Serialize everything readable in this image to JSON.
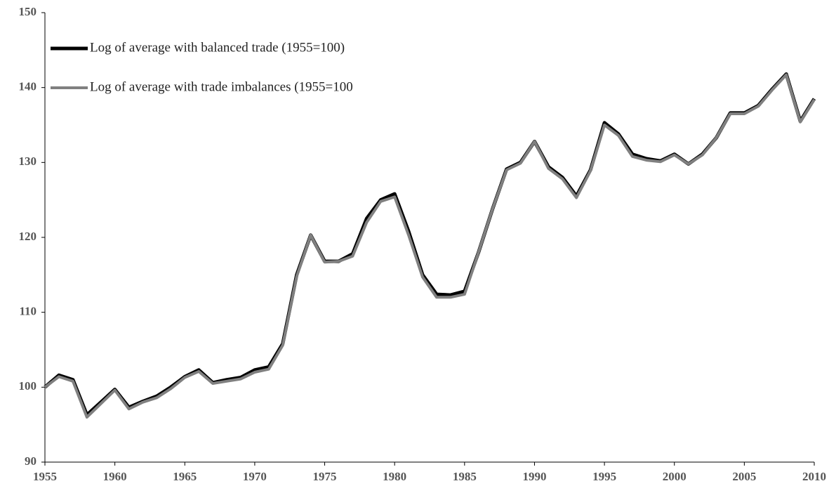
{
  "chart_data": {
    "type": "line",
    "x": [
      1955,
      1956,
      1957,
      1958,
      1959,
      1960,
      1961,
      1962,
      1963,
      1964,
      1965,
      1966,
      1967,
      1968,
      1969,
      1970,
      1971,
      1972,
      1973,
      1974,
      1975,
      1976,
      1977,
      1978,
      1979,
      1980,
      1981,
      1982,
      1983,
      1984,
      1985,
      1986,
      1987,
      1988,
      1989,
      1990,
      1991,
      1992,
      1993,
      1994,
      1995,
      1996,
      1997,
      1998,
      1999,
      2000,
      2001,
      2002,
      2003,
      2004,
      2005,
      2006,
      2007,
      2008,
      2009,
      2010
    ],
    "series": [
      {
        "name": "Log of average with balanced trade (1955=100)",
        "color": "#000000",
        "values": [
          100,
          101.6,
          101,
          96.3,
          98,
          99.7,
          97.3,
          98.1,
          98.8,
          100,
          101.4,
          102.3,
          100.6,
          101,
          101.3,
          102.3,
          102.7,
          105.8,
          115,
          120.3,
          116.8,
          116.8,
          117.8,
          122.5,
          125,
          125.8,
          120.8,
          115,
          112.4,
          112.3,
          112.8,
          118,
          123.8,
          129.1,
          130,
          132.8,
          129.4,
          128,
          125.5,
          129,
          135.3,
          133.8,
          131.1,
          130.5,
          130.2,
          131.1,
          129.8,
          131.1,
          133.3,
          136.6,
          136.6,
          137.6,
          139.8,
          141.8,
          135.5,
          138.5
        ]
      },
      {
        "name": "Log of average with trade imbalances (1955=100",
        "color": "#808080",
        "values": [
          100,
          101.4,
          100.8,
          96,
          97.8,
          99.6,
          97.1,
          98,
          98.6,
          99.8,
          101.3,
          102.1,
          100.5,
          100.8,
          101.1,
          102,
          102.4,
          105.6,
          114.8,
          120.3,
          116.7,
          116.8,
          117.5,
          122,
          124.8,
          125.4,
          120.3,
          114.7,
          112,
          112,
          112.4,
          118,
          123.8,
          129,
          129.9,
          132.8,
          129.2,
          127.8,
          125.3,
          128.9,
          135,
          133.6,
          130.8,
          130.3,
          130.1,
          131,
          129.8,
          131,
          133.3,
          136.5,
          136.5,
          137.5,
          139.7,
          141.7,
          135.4,
          138.4
        ]
      }
    ],
    "xlim": [
      1955,
      2010
    ],
    "xticks": [
      1955,
      1960,
      1965,
      1970,
      1975,
      1980,
      1985,
      1990,
      1995,
      2000,
      2005,
      2010
    ],
    "ylim": [
      90,
      150
    ],
    "yticks": [
      90,
      100,
      110,
      120,
      130,
      140,
      150
    ]
  }
}
